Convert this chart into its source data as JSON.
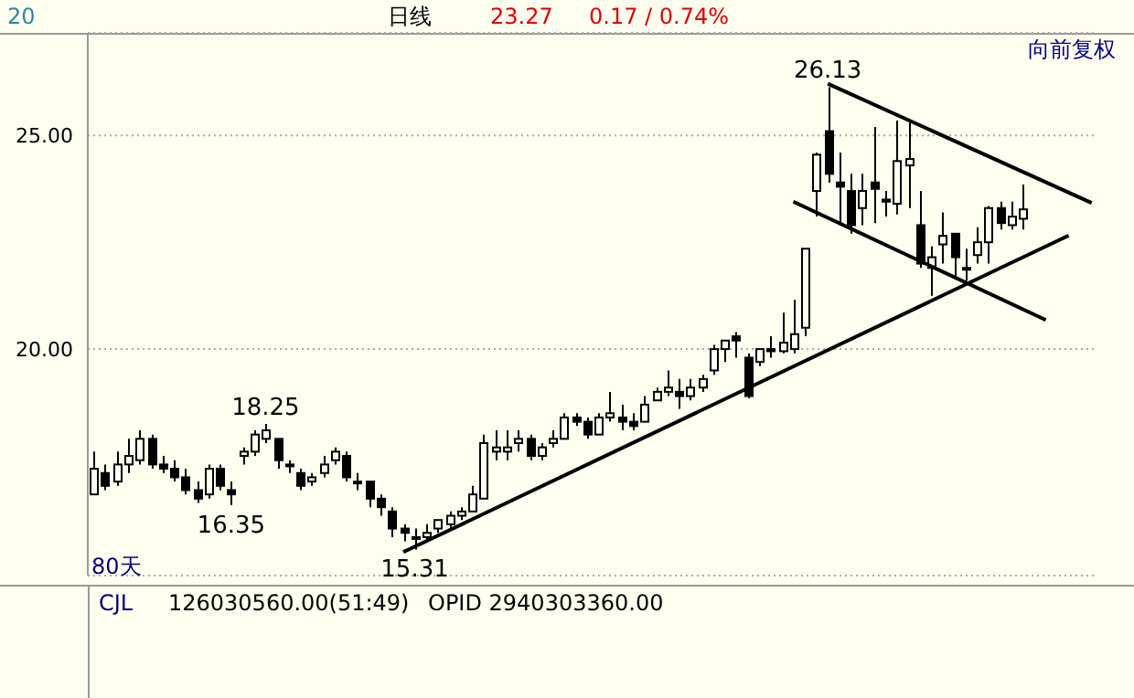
{
  "chart_data": {
    "type": "candlestick",
    "color": "#000000",
    "categories": [
      null,
      null,
      null,
      null,
      null,
      null,
      null,
      null,
      null,
      null,
      null,
      null,
      null,
      null,
      null,
      null,
      null,
      null,
      null,
      null,
      null,
      null,
      null,
      null,
      null,
      null,
      null,
      null,
      null,
      null,
      null,
      null,
      null,
      null,
      null,
      null,
      null,
      null,
      null,
      null,
      null,
      null,
      null,
      null,
      null,
      null,
      null,
      null,
      null,
      null,
      null,
      null,
      null,
      null,
      null,
      null,
      null,
      null,
      null,
      null,
      null,
      null,
      null,
      null,
      null,
      null,
      null,
      null,
      null,
      null,
      null,
      null,
      null,
      null,
      null,
      null,
      null,
      null,
      null,
      null,
      null,
      null,
      null,
      null,
      null,
      null,
      null,
      null
    ],
    "ohlc": [
      [
        16.6,
        17.6,
        16.6,
        17.2
      ],
      [
        17.1,
        17.3,
        16.7,
        16.8
      ],
      [
        16.9,
        17.6,
        16.8,
        17.3
      ],
      [
        17.3,
        17.9,
        17.1,
        17.5
      ],
      [
        17.4,
        18.1,
        17.3,
        17.9
      ],
      [
        17.9,
        18.0,
        17.2,
        17.3
      ],
      [
        17.3,
        17.5,
        17.1,
        17.2
      ],
      [
        17.2,
        17.4,
        16.9,
        17.0
      ],
      [
        17.0,
        17.2,
        16.6,
        16.7
      ],
      [
        16.7,
        16.9,
        16.4,
        16.5
      ],
      [
        16.6,
        17.3,
        16.5,
        17.2
      ],
      [
        17.2,
        17.3,
        16.7,
        16.8
      ],
      [
        16.7,
        16.9,
        16.35,
        16.6
      ],
      [
        17.5,
        17.7,
        17.3,
        17.6
      ],
      [
        17.6,
        18.1,
        17.5,
        18.0
      ],
      [
        17.9,
        18.25,
        17.8,
        18.1
      ],
      [
        17.9,
        17.9,
        17.2,
        17.4
      ],
      [
        17.3,
        17.4,
        17.1,
        17.3
      ],
      [
        17.1,
        17.2,
        16.7,
        16.8
      ],
      [
        16.9,
        17.1,
        16.8,
        17.0
      ],
      [
        17.1,
        17.5,
        17.0,
        17.3
      ],
      [
        17.4,
        17.7,
        17.3,
        17.6
      ],
      [
        17.5,
        17.6,
        16.9,
        17.0
      ],
      [
        16.9,
        17.1,
        16.7,
        16.9
      ],
      [
        16.9,
        16.9,
        16.3,
        16.5
      ],
      [
        16.5,
        16.6,
        16.1,
        16.3
      ],
      [
        16.2,
        16.3,
        15.6,
        15.8
      ],
      [
        15.8,
        15.9,
        15.5,
        15.7
      ],
      [
        15.6,
        15.8,
        15.31,
        15.6
      ],
      [
        15.6,
        15.9,
        15.5,
        15.7
      ],
      [
        15.8,
        16.0,
        15.7,
        16.0
      ],
      [
        15.9,
        16.2,
        15.8,
        16.1
      ],
      [
        16.1,
        16.3,
        16.0,
        16.2
      ],
      [
        16.2,
        16.8,
        16.2,
        16.6
      ],
      [
        16.5,
        18.0,
        16.5,
        17.8
      ],
      [
        17.6,
        18.1,
        17.4,
        17.7
      ],
      [
        17.6,
        18.1,
        17.4,
        17.7
      ],
      [
        17.8,
        18.1,
        17.6,
        17.9
      ],
      [
        17.9,
        18.0,
        17.4,
        17.5
      ],
      [
        17.5,
        17.8,
        17.4,
        17.7
      ],
      [
        17.8,
        18.1,
        17.7,
        17.9
      ],
      [
        17.9,
        18.5,
        17.9,
        18.4
      ],
      [
        18.4,
        18.5,
        18.2,
        18.3
      ],
      [
        18.3,
        18.4,
        17.9,
        18.0
      ],
      [
        18.0,
        18.5,
        18.0,
        18.4
      ],
      [
        18.4,
        19.0,
        18.3,
        18.5
      ],
      [
        18.4,
        18.7,
        18.1,
        18.3
      ],
      [
        18.3,
        18.5,
        18.1,
        18.2
      ],
      [
        18.3,
        18.9,
        18.3,
        18.7
      ],
      [
        18.8,
        19.1,
        18.8,
        19.0
      ],
      [
        19.0,
        19.5,
        18.9,
        19.1
      ],
      [
        19.0,
        19.3,
        18.6,
        18.9
      ],
      [
        18.9,
        19.3,
        18.8,
        19.1
      ],
      [
        19.1,
        19.4,
        19.0,
        19.3
      ],
      [
        19.5,
        20.1,
        19.4,
        20.0
      ],
      [
        20.0,
        20.2,
        19.7,
        20.2
      ],
      [
        20.3,
        20.4,
        19.8,
        20.2
      ],
      [
        19.8,
        19.9,
        18.85,
        18.9
      ],
      [
        19.7,
        20.0,
        19.6,
        20.0
      ],
      [
        20.0,
        20.3,
        19.8,
        19.95
      ],
      [
        19.95,
        20.85,
        19.9,
        20.15
      ],
      [
        20.0,
        21.15,
        19.9,
        20.35
      ],
      [
        20.5,
        22.35,
        20.3,
        22.35
      ],
      [
        23.7,
        24.6,
        23.1,
        24.55
      ],
      [
        25.1,
        26.13,
        23.9,
        24.1
      ],
      [
        23.9,
        24.6,
        22.9,
        23.8
      ],
      [
        23.7,
        24.1,
        22.7,
        22.9
      ],
      [
        23.3,
        24.1,
        22.9,
        23.7
      ],
      [
        23.9,
        25.2,
        22.95,
        23.75
      ],
      [
        23.5,
        23.7,
        23.1,
        23.45
      ],
      [
        23.4,
        25.35,
        23.15,
        24.4
      ],
      [
        24.3,
        25.3,
        23.3,
        24.45
      ],
      [
        22.9,
        23.7,
        21.9,
        22.0
      ],
      [
        21.9,
        22.4,
        21.25,
        22.15
      ],
      [
        22.45,
        23.2,
        22.0,
        22.65
      ],
      [
        22.7,
        22.7,
        21.7,
        22.15
      ],
      [
        21.9,
        22.35,
        21.6,
        21.9
      ],
      [
        22.2,
        22.85,
        22.0,
        22.5
      ],
      [
        22.5,
        23.35,
        22.0,
        23.3
      ],
      [
        23.3,
        23.45,
        22.8,
        22.95
      ],
      [
        22.9,
        23.45,
        22.8,
        23.1
      ],
      [
        23.05,
        23.85,
        22.8,
        23.27
      ],
      null,
      null,
      null,
      null,
      null,
      null
    ],
    "series": [
      {
        "type": "line",
        "color": "#000000",
        "values": [
          null,
          null,
          null,
          null,
          null,
          null,
          null,
          null,
          null,
          null,
          null,
          null,
          null,
          null,
          null,
          null,
          null,
          null,
          null,
          null,
          null,
          null,
          null,
          null,
          null,
          null,
          null,
          15.25,
          null,
          null,
          null,
          null,
          null,
          null,
          null,
          null,
          null,
          null,
          null,
          null,
          null,
          null,
          null,
          null,
          null,
          null,
          null,
          null,
          null,
          null,
          null,
          null,
          null,
          null,
          null,
          null,
          null,
          null,
          null,
          null,
          null,
          null,
          null,
          null,
          null,
          null,
          null,
          null,
          null,
          null,
          null,
          null,
          null,
          null,
          null,
          null,
          null,
          null,
          null,
          null,
          null,
          null,
          null,
          null,
          null,
          22.66,
          null,
          null
        ]
      },
      {
        "type": "line",
        "color": "#000000",
        "values": [
          null,
          null,
          null,
          null,
          null,
          null,
          null,
          null,
          null,
          null,
          null,
          null,
          null,
          null,
          null,
          null,
          null,
          null,
          null,
          null,
          null,
          null,
          null,
          null,
          null,
          null,
          null,
          null,
          null,
          null,
          null,
          null,
          null,
          null,
          null,
          null,
          null,
          null,
          null,
          null,
          null,
          null,
          null,
          null,
          null,
          null,
          null,
          null,
          null,
          null,
          null,
          null,
          null,
          null,
          null,
          null,
          null,
          null,
          null,
          null,
          null,
          null,
          null,
          null,
          26.21,
          null,
          null,
          null,
          null,
          null,
          null,
          null,
          null,
          null,
          null,
          null,
          null,
          null,
          null,
          null,
          null,
          null,
          null,
          null,
          null,
          null,
          null,
          23.42
        ]
      },
      {
        "type": "line",
        "color": "#000000",
        "values": [
          null,
          null,
          null,
          null,
          null,
          null,
          null,
          null,
          null,
          null,
          null,
          null,
          null,
          null,
          null,
          null,
          null,
          null,
          null,
          null,
          null,
          null,
          null,
          null,
          null,
          null,
          null,
          null,
          null,
          null,
          null,
          null,
          null,
          null,
          null,
          null,
          null,
          null,
          null,
          null,
          null,
          null,
          null,
          null,
          null,
          null,
          null,
          null,
          null,
          null,
          null,
          null,
          null,
          null,
          null,
          null,
          null,
          null,
          null,
          null,
          null,
          23.45,
          null,
          null,
          null,
          null,
          null,
          null,
          null,
          null,
          null,
          null,
          null,
          null,
          null,
          null,
          null,
          null,
          null,
          null,
          null,
          null,
          null,
          20.68,
          null,
          null,
          null,
          null
        ]
      }
    ],
    "ylim": [
      14.7,
      27.4
    ],
    "yticks": [
      {
        "value": 20,
        "label": "20.00"
      },
      {
        "value": 25,
        "label": "25.00"
      }
    ],
    "grid": "y",
    "annotations": [
      "20",
      "日线",
      "23.27",
      "0.17 / 0.74%",
      "向前复权",
      "80天",
      "CJL",
      "126030560.00(51:49)",
      "OPID 2940303360.00",
      {
        "text": "26.13",
        "y": 26.13
      },
      {
        "text": "18.25",
        "y": 18.25
      },
      {
        "text": "16.35",
        "y": 16.35
      },
      {
        "text": "15.31",
        "y": 15.31
      }
    ]
  }
}
